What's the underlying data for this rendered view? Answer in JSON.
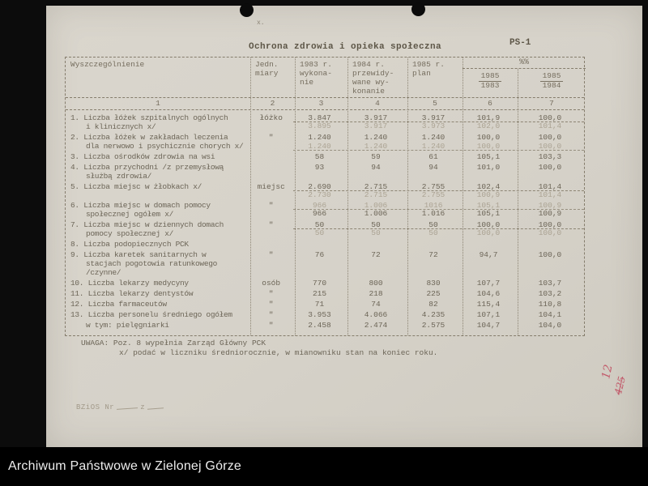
{
  "page": {
    "title": "Ochrona zdrowia i opieka społeczna",
    "form_code": "PS-1",
    "hole_mark": "x."
  },
  "table": {
    "col1_header": "Wyszczególnienie",
    "col2_header": [
      "Jedn.",
      "miary"
    ],
    "col3_header": [
      "1983 r.",
      "wykona-",
      "nie"
    ],
    "col4_header": [
      "1984 r.",
      "przewidy-",
      "wane wy-",
      "konanie"
    ],
    "col5_header": [
      "1985 r.",
      "plan"
    ],
    "pct_header": "%%",
    "pct_sub": [
      {
        "num": "1985",
        "den": "1983"
      },
      {
        "num": "1985",
        "den": "1984"
      }
    ],
    "numbering": [
      "1",
      "2",
      "3",
      "4",
      "5",
      "6",
      "7"
    ],
    "rows": [
      {
        "label_lines": [
          "1. Liczba łóżek szpitalnych ogólnych",
          "i klinicznych x/"
        ],
        "unit": "łóżko",
        "lines": [
          {
            "values": [
              "3.847",
              "3.917",
              "3.917",
              "101,9",
              "100,0"
            ],
            "rule": true
          },
          {
            "values": [
              "3.895",
              "3.917",
              "3.973",
              "102,0",
              "101,4"
            ],
            "ghost": true
          }
        ]
      },
      {
        "label_lines": [
          "2. Liczba łóżek w zakładach leczenia",
          "dla nerwowo i psychicznie chorych x/"
        ],
        "unit": "\"",
        "lines": [
          {
            "values": [
              "1.240",
              "1.240",
              "1.240",
              "100,0",
              "100,0"
            ]
          },
          {
            "values": [
              "1.240",
              "1.240",
              "1.240",
              "100,0",
              "100,0"
            ],
            "ghost": true,
            "rule": true
          }
        ]
      },
      {
        "label_lines": [
          "3. Liczba ośrodków zdrowia na wsi"
        ],
        "unit": "",
        "lines": [
          {
            "values": [
              "58",
              "59",
              "61",
              "105,1",
              "103,3"
            ]
          }
        ]
      },
      {
        "label_lines": [
          "4. Liczba przychodni /z przemysłową",
          "służbą zdrowia/"
        ],
        "unit": "",
        "lines": [
          {
            "values": [
              "93",
              "94",
              "94",
              "101,0",
              "100,0"
            ]
          }
        ]
      },
      {
        "label_lines": [
          "5. Liczba miejsc w żłobkach x/"
        ],
        "unit": "miejsc",
        "lines": [
          {
            "values": [
              "2.690",
              "2.715",
              "2.755",
              "102,4",
              "101,4"
            ],
            "rule": true
          },
          {
            "values": [
              "2.730",
              "2.715",
              "2.755",
              "100,9",
              "101,4"
            ],
            "ghost": true
          }
        ]
      },
      {
        "label_lines": [
          "6. Liczba miejsc w domach pomocy",
          "społecznej ogółem x/"
        ],
        "unit": "\"",
        "lines": [
          {
            "values": [
              "966",
              "1.006",
              "1016",
              "105,1",
              "100,9"
            ],
            "ghost": true,
            "rule": true
          },
          {
            "values": [
              "966",
              "1.006",
              "1.016",
              "105,1",
              "100,9"
            ]
          }
        ]
      },
      {
        "label_lines": [
          "7. Liczba miejsc w dziennych domach",
          "pomocy społecznej x/"
        ],
        "unit": "\"",
        "lines": [
          {
            "values": [
              "50",
              "50",
              "50",
              "100,0",
              "100,0"
            ],
            "rule": true
          },
          {
            "values": [
              "50",
              "50",
              "50",
              "100,0",
              "100,0"
            ],
            "ghost": true
          }
        ]
      },
      {
        "label_lines": [
          "8. Liczba podopiecznych PCK"
        ],
        "unit": "",
        "lines": []
      },
      {
        "label_lines": [
          "9. Liczba karetek sanitarnych w",
          "stacjach pogotowia ratunkowego",
          "/czynne/"
        ],
        "unit": "\"",
        "lines": [
          {
            "values": [
              "76",
              "72",
              "72",
              "94,7",
              "100,0"
            ]
          }
        ]
      },
      {
        "label_lines": [
          "10. Liczba lekarzy medycyny"
        ],
        "unit": "osób",
        "lines": [
          {
            "values": [
              "770",
              "800",
              "830",
              "107,7",
              "103,7"
            ]
          }
        ]
      },
      {
        "label_lines": [
          "11. Liczba lekarzy dentystów"
        ],
        "unit": "\"",
        "lines": [
          {
            "values": [
              "215",
              "218",
              "225",
              "104,6",
              "103,2"
            ]
          }
        ]
      },
      {
        "label_lines": [
          "12. Liczba farmaceutów"
        ],
        "unit": "\"",
        "lines": [
          {
            "values": [
              "71",
              "74",
              "82",
              "115,4",
              "110,8"
            ]
          }
        ]
      },
      {
        "label_lines": [
          "13. Liczba personelu średniego ogółem"
        ],
        "unit": "\"",
        "lines": [
          {
            "values": [
              "3.953",
              "4.066",
              "4.235",
              "107,1",
              "104,1"
            ]
          }
        ]
      },
      {
        "label_lines": [
          "w tym: pielęgniarki"
        ],
        "unit": "\"",
        "indent_first": true,
        "lines": [
          {
            "values": [
              "2.458",
              "2.474",
              "2.575",
              "104,7",
              "104,0"
            ]
          }
        ]
      }
    ]
  },
  "notes": {
    "uwaga_label": "UWAGA:",
    "uwaga_line1": "Poz. 8 wypełnia Zarząd Główny PCK",
    "uwaga_line2": "x/ podać w liczniku średniorocznie, w mianowniku stan na koniec roku."
  },
  "footer": {
    "stamp": "BZiOS Nr",
    "stamp_z": "z"
  },
  "annotations": {
    "red_marks": [
      "12",
      "425"
    ]
  },
  "archive_bar": {
    "text": "Archiwum Państwowe w Zielonej Górze"
  }
}
